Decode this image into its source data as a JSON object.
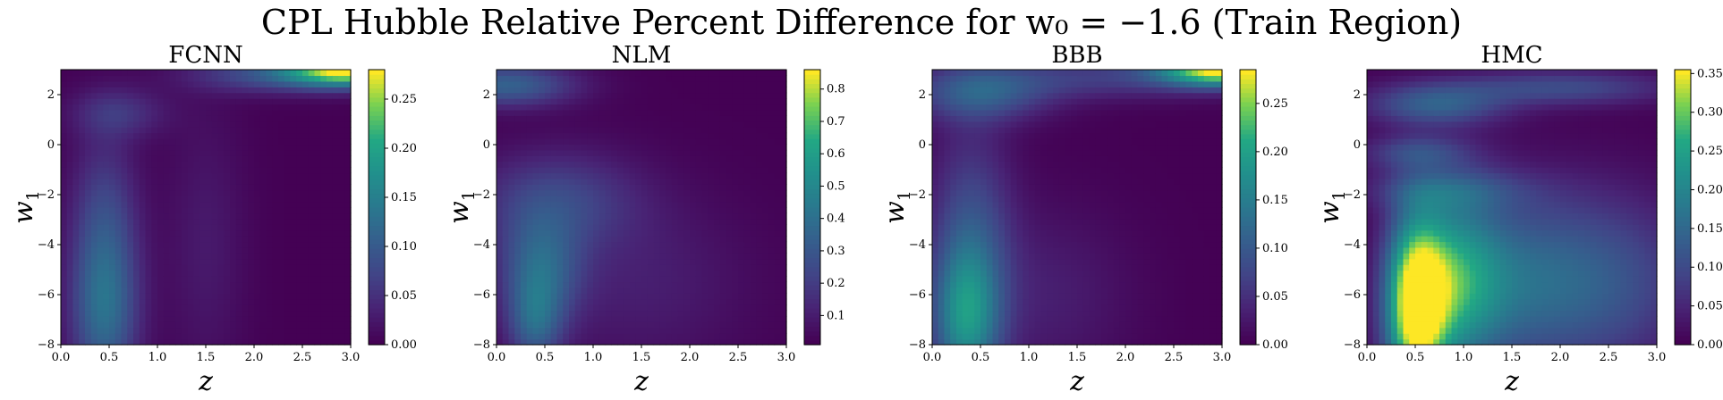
{
  "figure_title": "CPL Hubble Relative Percent Difference for w₀ = −1.6 (Train Region)",
  "chart_data": [
    {
      "type": "heatmap",
      "title": "FCNN",
      "xlabel": "z",
      "ylabel": "w",
      "ylabel_sub": "1",
      "xlim": [
        0,
        3
      ],
      "ylim": [
        -8,
        3
      ],
      "xticks": [
        "0.0",
        "0.5",
        "1.0",
        "1.5",
        "2.0",
        "2.5",
        "3.0"
      ],
      "yticks": [
        "−8",
        "−6",
        "−4",
        "−2",
        "0",
        "2"
      ],
      "colorbar_range": [
        0,
        0.28
      ],
      "colorbar_ticks": [
        "0.00",
        "0.05",
        "0.10",
        "0.15",
        "0.20",
        "0.25"
      ],
      "colormap": "viridis",
      "features": [
        {
          "z": 0.45,
          "w1": -6.8,
          "value": 0.11,
          "sz": 0.25,
          "sw": 2.2
        },
        {
          "z": 0.45,
          "w1": -3.0,
          "value": 0.07,
          "sz": 0.25,
          "sw": 2.5
        },
        {
          "z": 0.6,
          "w1": 1.3,
          "value": 0.05,
          "sz": 0.35,
          "sw": 0.7
        },
        {
          "z": 3.0,
          "w1": 3.0,
          "value": 0.27,
          "sz": 0.45,
          "sw": 0.45
        },
        {
          "z": 2.2,
          "w1": 2.8,
          "value": 0.08,
          "sz": 0.6,
          "sw": 0.5
        },
        {
          "z": 1.5,
          "w1": -4.0,
          "value": 0.025,
          "sz": 0.3,
          "sw": 4.0
        }
      ]
    },
    {
      "type": "heatmap",
      "title": "NLM",
      "xlabel": "z",
      "ylabel": "w",
      "ylabel_sub": "1",
      "xlim": [
        0,
        3
      ],
      "ylim": [
        -8,
        3
      ],
      "xticks": [
        "0.0",
        "0.5",
        "1.0",
        "1.5",
        "2.0",
        "2.5",
        "3.0"
      ],
      "yticks": [
        "−8",
        "−6",
        "−4",
        "−2",
        "0",
        "2"
      ],
      "colorbar_range": [
        0.01,
        0.86
      ],
      "colorbar_ticks": [
        "0.1",
        "0.2",
        "0.3",
        "0.4",
        "0.5",
        "0.6",
        "0.7",
        "0.8"
      ],
      "colormap": "viridis",
      "features": [
        {
          "z": 0.1,
          "w1": 2.4,
          "value": 0.34,
          "sz": 0.5,
          "sw": 0.6
        },
        {
          "z": 0.6,
          "w1": -2.2,
          "value": 0.22,
          "sz": 0.6,
          "sw": 1.4
        },
        {
          "z": 0.45,
          "w1": -5.0,
          "value": 0.32,
          "sz": 0.3,
          "sw": 1.5
        },
        {
          "z": 0.4,
          "w1": -7.2,
          "value": 0.28,
          "sz": 0.2,
          "sw": 1.2
        },
        {
          "z": 1.5,
          "w1": -5.5,
          "value": 0.1,
          "sz": 0.8,
          "sw": 2.5
        }
      ]
    },
    {
      "type": "heatmap",
      "title": "BBB",
      "xlabel": "z",
      "ylabel": "w",
      "ylabel_sub": "1",
      "xlim": [
        0,
        3
      ],
      "ylim": [
        -8,
        3
      ],
      "xticks": [
        "0.0",
        "0.5",
        "1.0",
        "1.5",
        "2.0",
        "2.5",
        "3.0"
      ],
      "yticks": [
        "−8",
        "−6",
        "−4",
        "−2",
        "0",
        "2"
      ],
      "colorbar_range": [
        0,
        0.285
      ],
      "colorbar_ticks": [
        "0.00",
        "0.05",
        "0.10",
        "0.15",
        "0.20",
        "0.25"
      ],
      "colormap": "viridis",
      "features": [
        {
          "z": 0.35,
          "w1": -7.0,
          "value": 0.15,
          "sz": 0.25,
          "sw": 2.0
        },
        {
          "z": 0.4,
          "w1": -3.5,
          "value": 0.08,
          "sz": 0.3,
          "sw": 3.0
        },
        {
          "z": 0.5,
          "w1": 2.1,
          "value": 0.1,
          "sz": 0.5,
          "sw": 0.8
        },
        {
          "z": 3.0,
          "w1": 3.0,
          "value": 0.28,
          "sz": 0.45,
          "sw": 0.45
        },
        {
          "z": 1.8,
          "w1": 2.7,
          "value": 0.06,
          "sz": 0.9,
          "sw": 0.6
        },
        {
          "z": 1.2,
          "w1": -6.0,
          "value": 0.03,
          "sz": 0.6,
          "sw": 2.5
        }
      ]
    },
    {
      "type": "heatmap",
      "title": "HMC",
      "xlabel": "z",
      "ylabel": "w",
      "ylabel_sub": "1",
      "xlim": [
        0,
        3
      ],
      "ylim": [
        -8,
        3
      ],
      "xticks": [
        "0.0",
        "0.5",
        "1.0",
        "1.5",
        "2.0",
        "2.5",
        "3.0"
      ],
      "yticks": [
        "−8",
        "−6",
        "−4",
        "−2",
        "0",
        "2"
      ],
      "colorbar_range": [
        0,
        0.355
      ],
      "colorbar_ticks": [
        "0.00",
        "0.05",
        "0.10",
        "0.15",
        "0.20",
        "0.25",
        "0.30",
        "0.35"
      ],
      "colormap": "viridis",
      "features": [
        {
          "z": 0.5,
          "w1": -6.5,
          "value": 0.34,
          "sz": 0.22,
          "sw": 2.5
        },
        {
          "z": 0.9,
          "w1": -5.5,
          "value": 0.2,
          "sz": 0.35,
          "sw": 2.5
        },
        {
          "z": 1.6,
          "w1": -5.5,
          "value": 0.13,
          "sz": 0.6,
          "sw": 2.5
        },
        {
          "z": 2.6,
          "w1": -5.5,
          "value": 0.09,
          "sz": 0.6,
          "sw": 2.5
        },
        {
          "z": 0.7,
          "w1": 1.6,
          "value": 0.13,
          "sz": 0.5,
          "sw": 0.6
        },
        {
          "z": 2.0,
          "w1": 2.3,
          "value": 0.1,
          "sz": 0.8,
          "sw": 0.5
        },
        {
          "z": 0.5,
          "w1": -0.3,
          "value": 0.09,
          "sz": 0.4,
          "sw": 0.5
        },
        {
          "z": 0.8,
          "w1": -1.8,
          "value": 0.08,
          "sz": 0.6,
          "sw": 0.6
        }
      ]
    }
  ]
}
